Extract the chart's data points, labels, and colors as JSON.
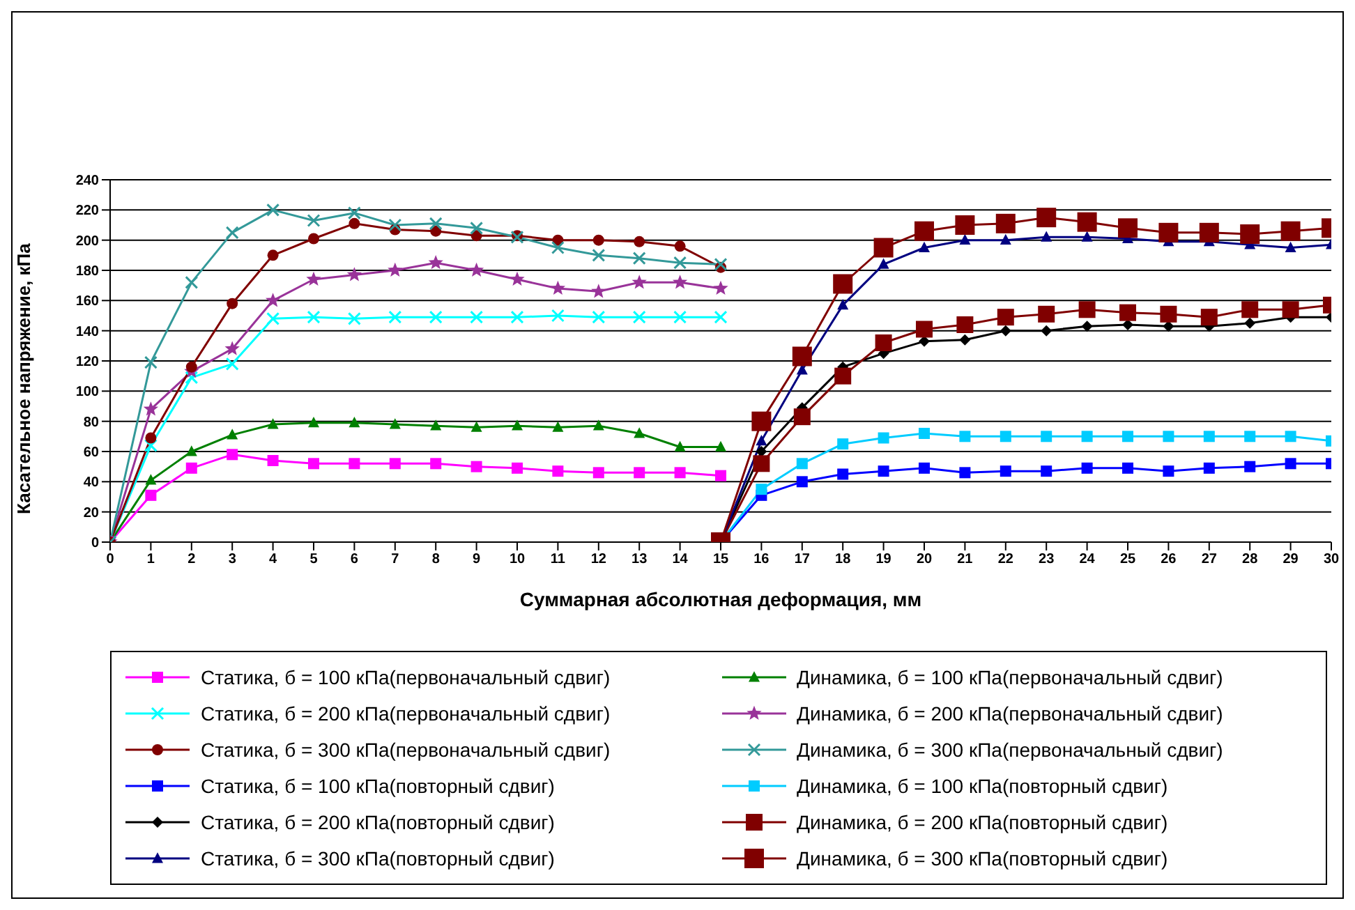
{
  "chart_data": {
    "type": "line",
    "xlabel": "Суммарная абсолютная деформация, мм",
    "ylabel": "Касательное напряжение, кПа",
    "xlim": [
      0,
      30
    ],
    "xticks": [
      0,
      1,
      2,
      3,
      4,
      5,
      6,
      7,
      8,
      9,
      10,
      11,
      12,
      13,
      14,
      15,
      16,
      17,
      18,
      19,
      20,
      21,
      22,
      23,
      24,
      25,
      26,
      27,
      28,
      29,
      30
    ],
    "ylim": [
      0,
      240
    ],
    "yticks": [
      0,
      20,
      40,
      60,
      80,
      100,
      120,
      140,
      160,
      180,
      200,
      220,
      240
    ],
    "grid": "y",
    "legend": "bottom",
    "series": [
      {
        "name": "Статика, б = 100 кПа(первоначальный сдвиг)",
        "color": "#ff00ff",
        "marker": "square",
        "x": [
          0,
          1,
          2,
          3,
          4,
          5,
          6,
          7,
          8,
          9,
          10,
          11,
          12,
          13,
          14,
          15
        ],
        "values": [
          0,
          31,
          49,
          58,
          54,
          52,
          52,
          52,
          52,
          50,
          49,
          47,
          46,
          46,
          46,
          44
        ]
      },
      {
        "name": "Динамика, б = 100 кПа(первоначальный сдвиг)",
        "color": "#008000",
        "marker": "triangle",
        "x": [
          0,
          1,
          2,
          3,
          4,
          5,
          6,
          7,
          8,
          9,
          10,
          11,
          12,
          13,
          14,
          15
        ],
        "values": [
          0,
          41,
          60,
          71,
          78,
          79,
          79,
          78,
          77,
          76,
          77,
          76,
          77,
          72,
          63,
          63
        ]
      },
      {
        "name": "Статика, б = 200 кПа(первоначальный сдвиг)",
        "color": "#00ffff",
        "marker": "cross",
        "x": [
          0,
          1,
          2,
          3,
          4,
          5,
          6,
          7,
          8,
          9,
          10,
          11,
          12,
          13,
          14,
          15
        ],
        "values": [
          0,
          64,
          109,
          118,
          148,
          149,
          148,
          149,
          149,
          149,
          149,
          150,
          149,
          149,
          149,
          149
        ]
      },
      {
        "name": "Динамика, б = 200 кПа(первоначальный сдвиг)",
        "color": "#993399",
        "marker": "star",
        "x": [
          0,
          1,
          2,
          3,
          4,
          5,
          6,
          7,
          8,
          9,
          10,
          11,
          12,
          13,
          14,
          15
        ],
        "values": [
          0,
          88,
          113,
          128,
          160,
          174,
          177,
          180,
          185,
          180,
          174,
          168,
          166,
          172,
          172,
          168
        ]
      },
      {
        "name": "Статика, б = 300 кПа(первоначальный сдвиг)",
        "color": "#800000",
        "marker": "circle",
        "x": [
          0,
          1,
          2,
          3,
          4,
          5,
          6,
          7,
          8,
          9,
          10,
          11,
          12,
          13,
          14,
          15
        ],
        "values": [
          0,
          69,
          116,
          158,
          190,
          201,
          211,
          207,
          206,
          203,
          203,
          200,
          200,
          199,
          196,
          182
        ]
      },
      {
        "name": "Динамика, б = 300 кПа(первоначальный сдвиг)",
        "color": "#339999",
        "marker": "cross",
        "x": [
          0,
          1,
          2,
          3,
          4,
          5,
          6,
          7,
          8,
          9,
          10,
          11,
          12,
          13,
          14,
          15
        ],
        "values": [
          0,
          119,
          172,
          205,
          220,
          213,
          218,
          210,
          211,
          208,
          202,
          195,
          190,
          188,
          185,
          184
        ]
      },
      {
        "name": "Статика, б = 100 кПа(повторный сдвиг)",
        "color": "#0000ff",
        "marker": "square",
        "x": [
          15,
          16,
          17,
          18,
          19,
          20,
          21,
          22,
          23,
          24,
          25,
          26,
          27,
          28,
          29,
          30
        ],
        "values": [
          0,
          31,
          40,
          45,
          47,
          49,
          46,
          47,
          47,
          49,
          49,
          47,
          49,
          50,
          52,
          52
        ]
      },
      {
        "name": "Динамика, б = 100 кПа(повторный сдвиг)",
        "color": "#00ccff",
        "marker": "square",
        "x": [
          15,
          16,
          17,
          18,
          19,
          20,
          21,
          22,
          23,
          24,
          25,
          26,
          27,
          28,
          29,
          30
        ],
        "values": [
          0,
          35,
          52,
          65,
          69,
          72,
          70,
          70,
          70,
          70,
          70,
          70,
          70,
          70,
          70,
          67
        ]
      },
      {
        "name": "Статика, б = 200 кПа(повторный сдвиг)",
        "color": "#000000",
        "marker": "diamond",
        "x": [
          15,
          16,
          17,
          18,
          19,
          20,
          21,
          22,
          23,
          24,
          25,
          26,
          27,
          28,
          29,
          30
        ],
        "values": [
          0,
          60,
          89,
          116,
          125,
          133,
          134,
          140,
          140,
          143,
          144,
          143,
          143,
          145,
          149,
          149
        ]
      },
      {
        "name": "Динамика, б = 200 кПа(повторный сдвиг)",
        "color": "#800000",
        "marker": "square",
        "x": [
          15,
          16,
          17,
          18,
          19,
          20,
          21,
          22,
          23,
          24,
          25,
          26,
          27,
          28,
          29,
          30
        ],
        "values": [
          0,
          52,
          83,
          110,
          132,
          141,
          144,
          149,
          151,
          154,
          152,
          151,
          149,
          154,
          154,
          157
        ]
      },
      {
        "name": "Статика, б = 300 кПа(повторный сдвиг)",
        "color": "#000080",
        "marker": "triangle",
        "x": [
          15,
          16,
          17,
          18,
          19,
          20,
          21,
          22,
          23,
          24,
          25,
          26,
          27,
          28,
          29,
          30
        ],
        "values": [
          0,
          67,
          114,
          157,
          184,
          195,
          200,
          200,
          202,
          202,
          201,
          199,
          199,
          197,
          195,
          197
        ]
      },
      {
        "name": "Динамика, б = 300 кПа(повторный сдвиг)",
        "color": "#800000",
        "marker": "square",
        "x": [
          15,
          16,
          17,
          18,
          19,
          20,
          21,
          22,
          23,
          24,
          25,
          26,
          27,
          28,
          29,
          30
        ],
        "values": [
          0,
          80,
          123,
          171,
          195,
          206,
          210,
          211,
          215,
          212,
          208,
          205,
          205,
          204,
          206,
          208
        ]
      }
    ]
  }
}
